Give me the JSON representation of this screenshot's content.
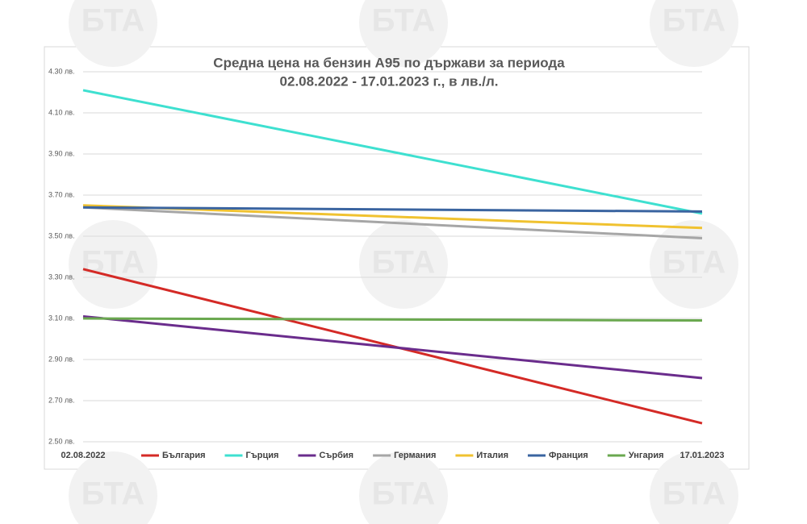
{
  "chart_data": {
    "type": "line",
    "title": [
      "Средна цена на бензин А95 по държави за периода",
      "02.08.2022 - 17.01.2023 г., в лв./л."
    ],
    "watermark": "БТА",
    "categories": [
      "02.08.2022",
      "17.01.2023"
    ],
    "ylim": [
      2.5,
      4.3
    ],
    "yticks": [
      {
        "value": 2.5,
        "label": "2.50 лв."
      },
      {
        "value": 2.7,
        "label": "2.70 лв."
      },
      {
        "value": 2.9,
        "label": "2.90 лв."
      },
      {
        "value": 3.1,
        "label": "3.10 лв."
      },
      {
        "value": 3.3,
        "label": "3.30 лв."
      },
      {
        "value": 3.5,
        "label": "3.50 лв."
      },
      {
        "value": 3.7,
        "label": "3.70 лв."
      },
      {
        "value": 3.9,
        "label": "3.90 лв."
      },
      {
        "value": 4.1,
        "label": "4.10 лв."
      },
      {
        "value": 4.3,
        "label": "4.30 лв."
      }
    ],
    "grid": true,
    "legend": "bottom",
    "series": [
      {
        "name": "България",
        "color": "#d42a26",
        "values": [
          3.34,
          2.59
        ]
      },
      {
        "name": "Гърция",
        "color": "#3ee0d0",
        "values": [
          4.21,
          3.61
        ]
      },
      {
        "name": "Сърбия",
        "color": "#6a2c8c",
        "values": [
          3.11,
          2.81
        ]
      },
      {
        "name": "Германия",
        "color": "#a6a6a6",
        "values": [
          3.64,
          3.49
        ]
      },
      {
        "name": "Италия",
        "color": "#f0c230",
        "values": [
          3.65,
          3.54
        ]
      },
      {
        "name": "Франция",
        "color": "#3a64a0",
        "values": [
          3.64,
          3.62
        ]
      },
      {
        "name": "Унгария",
        "color": "#6aa84f",
        "values": [
          3.1,
          3.09
        ]
      }
    ]
  }
}
